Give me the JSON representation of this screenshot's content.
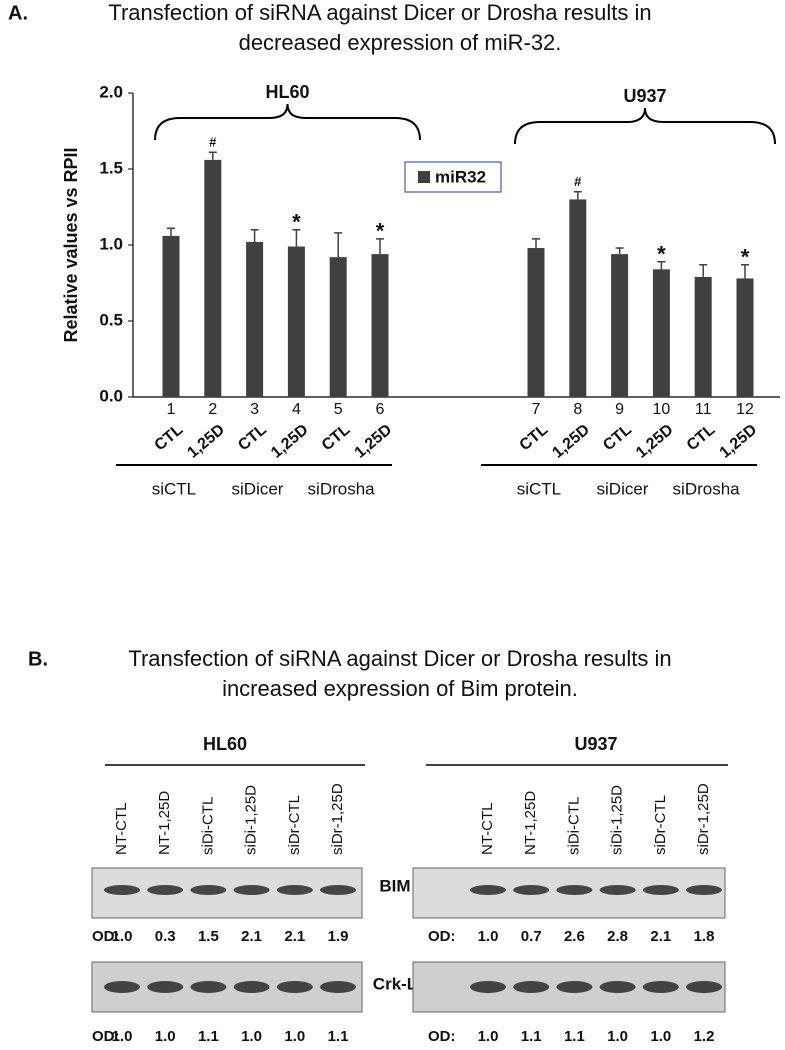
{
  "panel_a": {
    "label": "A."
  },
  "chart_data": {
    "type": "bar",
    "title_lines": [
      "Transfection of siRNA against Dicer or Drosha results in",
      "decreased expression of miR-32."
    ],
    "y_label": "Relative values vs RPII",
    "ylim": [
      0,
      2
    ],
    "yticks": [
      {
        "value": 0,
        "label": "0.0"
      },
      {
        "value": 0.5,
        "label": "0.5"
      },
      {
        "value": 1,
        "label": "1.0"
      },
      {
        "value": 1.5,
        "label": "1.5"
      },
      {
        "value": 2,
        "label": "2.0"
      }
    ],
    "categories": [
      "1",
      "2",
      "3",
      "4",
      "5",
      "6",
      "7",
      "8",
      "9",
      "10",
      "11",
      "12"
    ],
    "treatments": [
      "CTL",
      "1,25D",
      "CTL",
      "1,25D",
      "CTL",
      "1,25D",
      "CTL",
      "1,25D",
      "CTL",
      "1,25D",
      "CTL",
      "1,25D"
    ],
    "groups": [
      "siCTL",
      "siDicer",
      "siDrosha",
      "siCTL",
      "siDicer",
      "siDrosha"
    ],
    "cell_lines": [
      "HL60",
      "U937"
    ],
    "markers": [
      null,
      "#",
      null,
      "*",
      null,
      "*",
      null,
      "#",
      null,
      "*",
      null,
      "*"
    ],
    "legend": "top-center",
    "series": [
      {
        "name": "miR32",
        "color": "#404040",
        "values": [
          1.06,
          1.56,
          1.02,
          0.99,
          0.92,
          0.94,
          0.98,
          1.3,
          0.94,
          0.84,
          0.79,
          0.78
        ],
        "errors": [
          0.05,
          0.05,
          0.08,
          0.11,
          0.16,
          0.1,
          0.06,
          0.05,
          0.04,
          0.05,
          0.08,
          0.09
        ]
      }
    ]
  },
  "panel_b": {
    "label": "B.",
    "title_lines": [
      "Transfection of siRNA against Dicer or Drosha results in",
      "increased expression of Bim protein."
    ],
    "lanes": [
      "NT-CTL",
      "NT-1,25D",
      "siDi-CTL",
      "siDi-1,25D",
      "siDr-CTL",
      "siDr-1,25D"
    ],
    "proteins": [
      "BIM",
      "Crk-L"
    ],
    "od_label": "OD:",
    "blots": [
      {
        "cell_line": "HL60",
        "od": [
          [
            "1.0",
            "0.3",
            "1.5",
            "2.1",
            "2.1",
            "1.9"
          ],
          [
            "1.0",
            "1.0",
            "1.1",
            "1.0",
            "1.0",
            "1.1"
          ]
        ]
      },
      {
        "cell_line": "U937",
        "od": [
          [
            "1.0",
            "0.7",
            "2.6",
            "2.8",
            "2.1",
            "1.8"
          ],
          [
            "1.0",
            "1.1",
            "1.1",
            "1.0",
            "1.0",
            "1.2"
          ]
        ]
      }
    ]
  }
}
